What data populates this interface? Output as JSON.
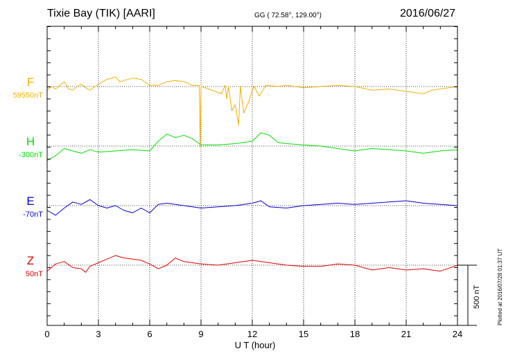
{
  "header": {
    "station": "Tixie Bay (TIK)  [AARI]",
    "coords": "GG ( 72.58°, 129.00°)",
    "date": "2016/06/27"
  },
  "footer": {
    "plotted": "Plotted at 2016/07/28 01:37 UT"
  },
  "chart_data": {
    "type": "line",
    "xlabel": "U T (hour)",
    "xlim": [
      0,
      24
    ],
    "xticks": [
      "0",
      "3",
      "6",
      "9",
      "12",
      "15",
      "18",
      "21",
      "24"
    ],
    "scale_bar": {
      "label": "500 nT",
      "value_nT": 500
    },
    "grid": true,
    "series": [
      {
        "name": "F",
        "baseline": "59550nT",
        "color": "#f0b000",
        "x": [
          0,
          0.25,
          0.5,
          0.75,
          1,
          1.25,
          1.5,
          1.75,
          2,
          2.25,
          2.5,
          3,
          3.5,
          4,
          4.25,
          4.5,
          5,
          5.5,
          6,
          6.5,
          7,
          7.5,
          8,
          8.5,
          8.9,
          8.95,
          9.0,
          9.05,
          10.2,
          10.4,
          10.5,
          10.6,
          10.8,
          11.0,
          11.2,
          11.3,
          11.5,
          11.8,
          12.0,
          12.1,
          12.4,
          12.8,
          13.5,
          14,
          15,
          16,
          17,
          18,
          19,
          20,
          21,
          22,
          22.5,
          23,
          24
        ],
        "values": [
          -30,
          0,
          -20,
          10,
          40,
          -20,
          -30,
          0,
          20,
          -10,
          -30,
          20,
          60,
          80,
          40,
          50,
          70,
          60,
          10,
          10,
          40,
          50,
          40,
          10,
          10,
          -500,
          0,
          0,
          -60,
          10,
          -100,
          0,
          -200,
          -150,
          -320,
          0,
          -220,
          -120,
          -30,
          0,
          -80,
          10,
          0,
          10,
          -10,
          0,
          10,
          0,
          -30,
          -20,
          -40,
          -60,
          -30,
          -20,
          0
        ]
      },
      {
        "name": "H",
        "baseline": "-300nT",
        "color": "#00dd00",
        "x": [
          0,
          0.5,
          1,
          1.5,
          2,
          2.5,
          3,
          4,
          5,
          6,
          6.5,
          7,
          7.5,
          8,
          8.5,
          9,
          10,
          11,
          12,
          12.5,
          13,
          13.5,
          14,
          15,
          16,
          17,
          18,
          19,
          20,
          21,
          22,
          23,
          24
        ],
        "values": [
          -120,
          -80,
          -20,
          -40,
          -60,
          -30,
          -50,
          -40,
          -30,
          -40,
          40,
          100,
          70,
          90,
          60,
          10,
          10,
          20,
          40,
          110,
          90,
          30,
          20,
          10,
          0,
          -20,
          -40,
          -20,
          -30,
          -40,
          -60,
          -40,
          -30
        ]
      },
      {
        "name": "E",
        "baseline": "-70nT",
        "color": "#0000cc",
        "x": [
          0,
          0.5,
          1,
          1.5,
          2,
          2.5,
          3,
          3.5,
          4,
          4.5,
          5,
          5.5,
          6,
          6.5,
          7,
          8,
          9,
          10,
          11,
          11.5,
          12,
          12.5,
          13,
          14,
          15,
          16,
          17,
          18,
          19,
          20,
          21,
          22,
          23,
          24
        ],
        "values": [
          -40,
          -80,
          -20,
          30,
          10,
          50,
          0,
          -20,
          0,
          -40,
          -60,
          -20,
          -60,
          10,
          20,
          0,
          -20,
          -10,
          0,
          10,
          20,
          40,
          -10,
          -20,
          0,
          10,
          20,
          10,
          20,
          30,
          40,
          20,
          10,
          0
        ]
      },
      {
        "name": "Z",
        "baseline": "50nT",
        "color": "#dd0000",
        "x": [
          0,
          0.5,
          1,
          1.5,
          2,
          2.25,
          2.5,
          3,
          3.5,
          4,
          4.5,
          5,
          5.5,
          6,
          6.5,
          7,
          7.5,
          8,
          8.5,
          9,
          10,
          11,
          12,
          13,
          14,
          15,
          16,
          17,
          18,
          19,
          20,
          21,
          22,
          23,
          24
        ],
        "values": [
          -50,
          10,
          30,
          -20,
          -30,
          -60,
          -10,
          20,
          50,
          80,
          60,
          50,
          40,
          10,
          -30,
          0,
          60,
          30,
          20,
          10,
          0,
          20,
          40,
          20,
          0,
          -10,
          -10,
          10,
          0,
          -40,
          -20,
          -40,
          -30,
          -50,
          0
        ]
      }
    ]
  }
}
